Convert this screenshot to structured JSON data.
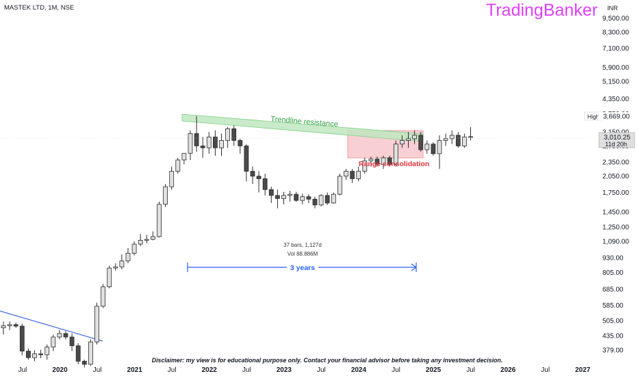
{
  "header": {
    "symbol_line": "MASTEK LTD, 1M, NSE",
    "brand": "TradingBanker",
    "currency": "INR"
  },
  "price_tags": {
    "high_label": "High",
    "high_value": "3,669.00",
    "last_value": "3,010.25",
    "countdown": "11d 20h"
  },
  "annotations": {
    "trendline": "Trendline resistance",
    "range": "Range consolidation",
    "measure_bars": "37 bars, 1,127d",
    "measure_vol": "Vol 88.886M",
    "span": "3 years"
  },
  "disclaimer": "Disclaimer: my view is for educational purpose only. Contact your financial advisor before taking any investment decision.",
  "colors": {
    "up_fill": "#e0e0e0",
    "down_fill": "#4a4a4a",
    "wick": "#2a2a2a",
    "brand": "#e040fb",
    "trendline_green": "#2e9e3e",
    "range_red": "#e0323c",
    "range_fill": "#f6c3c7",
    "measure_blue": "#2962ff",
    "blue_line": "#4169e1"
  },
  "chart_data": {
    "type": "candlestick",
    "timeframe": "1M",
    "y_scale": "log",
    "y_ticks": [
      "9,500.00",
      "8,300.00",
      "7,100.00",
      "5,900.00",
      "5,150.00",
      "4,350.00",
      "3,750.00",
      "3,150.00",
      "2,750.00",
      "2,350.00",
      "2,050.00",
      "1,750.00",
      "1,450.00",
      "1,250.00",
      "1,090.00",
      "930.00",
      "805.00",
      "685.00",
      "585.00",
      "505.00",
      "435.00",
      "379.00"
    ],
    "x_ticks": [
      "Jul",
      "2020",
      "Jul",
      "2021",
      "Jul",
      "2022",
      "Jul",
      "2023",
      "Jul",
      "2024",
      "Jul",
      "2025",
      "Jul",
      "2026",
      "Jul",
      "2027"
    ],
    "candles": [
      {
        "o": 470,
        "h": 500,
        "l": 440,
        "c": 480
      },
      {
        "o": 480,
        "h": 500,
        "l": 460,
        "c": 485
      },
      {
        "o": 485,
        "h": 495,
        "l": 470,
        "c": 478
      },
      {
        "o": 478,
        "h": 490,
        "l": 360,
        "c": 375
      },
      {
        "o": 375,
        "h": 385,
        "l": 345,
        "c": 352
      },
      {
        "o": 352,
        "h": 378,
        "l": 340,
        "c": 365
      },
      {
        "o": 365,
        "h": 380,
        "l": 350,
        "c": 362
      },
      {
        "o": 362,
        "h": 400,
        "l": 345,
        "c": 390
      },
      {
        "o": 390,
        "h": 440,
        "l": 375,
        "c": 430
      },
      {
        "o": 430,
        "h": 460,
        "l": 420,
        "c": 445
      },
      {
        "o": 445,
        "h": 455,
        "l": 420,
        "c": 430
      },
      {
        "o": 430,
        "h": 445,
        "l": 375,
        "c": 395
      },
      {
        "o": 395,
        "h": 405,
        "l": 330,
        "c": 340
      },
      {
        "o": 340,
        "h": 345,
        "l": 320,
        "c": 330
      },
      {
        "o": 330,
        "h": 420,
        "l": 325,
        "c": 410
      },
      {
        "o": 410,
        "h": 600,
        "l": 400,
        "c": 580
      },
      {
        "o": 580,
        "h": 720,
        "l": 570,
        "c": 700
      },
      {
        "o": 700,
        "h": 860,
        "l": 690,
        "c": 840
      },
      {
        "o": 840,
        "h": 880,
        "l": 820,
        "c": 850
      },
      {
        "o": 850,
        "h": 960,
        "l": 830,
        "c": 900
      },
      {
        "o": 900,
        "h": 1020,
        "l": 880,
        "c": 970
      },
      {
        "o": 970,
        "h": 1090,
        "l": 950,
        "c": 1060
      },
      {
        "o": 1060,
        "h": 1170,
        "l": 1040,
        "c": 1100
      },
      {
        "o": 1100,
        "h": 1160,
        "l": 1070,
        "c": 1110
      },
      {
        "o": 1110,
        "h": 1200,
        "l": 1100,
        "c": 1140
      },
      {
        "o": 1140,
        "h": 1600,
        "l": 1130,
        "c": 1560
      },
      {
        "o": 1560,
        "h": 1900,
        "l": 1520,
        "c": 1850
      },
      {
        "o": 1850,
        "h": 2250,
        "l": 1800,
        "c": 2150
      },
      {
        "o": 2150,
        "h": 2450,
        "l": 2100,
        "c": 2400
      },
      {
        "o": 2400,
        "h": 2560,
        "l": 2300,
        "c": 2560
      },
      {
        "o": 2560,
        "h": 3200,
        "l": 2400,
        "c": 3100
      },
      {
        "o": 3100,
        "h": 3669,
        "l": 2600,
        "c": 2750
      },
      {
        "o": 2750,
        "h": 3000,
        "l": 2450,
        "c": 2700
      },
      {
        "o": 2700,
        "h": 3150,
        "l": 2550,
        "c": 3000
      },
      {
        "o": 3000,
        "h": 3200,
        "l": 2500,
        "c": 2700
      },
      {
        "o": 2700,
        "h": 3100,
        "l": 2500,
        "c": 2900
      },
      {
        "o": 2900,
        "h": 3300,
        "l": 2700,
        "c": 3250
      },
      {
        "o": 3250,
        "h": 3350,
        "l": 2750,
        "c": 2900
      },
      {
        "o": 2900,
        "h": 2950,
        "l": 2550,
        "c": 2750
      },
      {
        "o": 2750,
        "h": 2800,
        "l": 1950,
        "c": 2150
      },
      {
        "o": 2150,
        "h": 2250,
        "l": 1900,
        "c": 2050
      },
      {
        "o": 2050,
        "h": 2150,
        "l": 1750,
        "c": 2000
      },
      {
        "o": 2000,
        "h": 2100,
        "l": 1700,
        "c": 1800
      },
      {
        "o": 1800,
        "h": 1850,
        "l": 1580,
        "c": 1700
      },
      {
        "o": 1700,
        "h": 1800,
        "l": 1500,
        "c": 1650
      },
      {
        "o": 1650,
        "h": 1760,
        "l": 1560,
        "c": 1700
      },
      {
        "o": 1700,
        "h": 1780,
        "l": 1600,
        "c": 1720
      },
      {
        "o": 1720,
        "h": 1760,
        "l": 1600,
        "c": 1620
      },
      {
        "o": 1620,
        "h": 1730,
        "l": 1560,
        "c": 1680
      },
      {
        "o": 1680,
        "h": 1720,
        "l": 1580,
        "c": 1640
      },
      {
        "o": 1640,
        "h": 1680,
        "l": 1500,
        "c": 1550
      },
      {
        "o": 1550,
        "h": 1720,
        "l": 1530,
        "c": 1700
      },
      {
        "o": 1700,
        "h": 1750,
        "l": 1550,
        "c": 1580
      },
      {
        "o": 1580,
        "h": 1750,
        "l": 1570,
        "c": 1720
      },
      {
        "o": 1720,
        "h": 2100,
        "l": 1700,
        "c": 2050
      },
      {
        "o": 2050,
        "h": 2200,
        "l": 1980,
        "c": 2150
      },
      {
        "o": 2150,
        "h": 2200,
        "l": 1920,
        "c": 2000
      },
      {
        "o": 2000,
        "h": 2250,
        "l": 1950,
        "c": 2150
      },
      {
        "o": 2150,
        "h": 2450,
        "l": 2100,
        "c": 2380
      },
      {
        "o": 2380,
        "h": 2480,
        "l": 2250,
        "c": 2420
      },
      {
        "o": 2420,
        "h": 2480,
        "l": 2250,
        "c": 2300
      },
      {
        "o": 2300,
        "h": 2500,
        "l": 2200,
        "c": 2450
      },
      {
        "o": 2450,
        "h": 2500,
        "l": 2250,
        "c": 2300
      },
      {
        "o": 2300,
        "h": 2900,
        "l": 2250,
        "c": 2800
      },
      {
        "o": 2800,
        "h": 3050,
        "l": 2700,
        "c": 2900
      },
      {
        "o": 2900,
        "h": 3150,
        "l": 2700,
        "c": 2950
      },
      {
        "o": 2950,
        "h": 3200,
        "l": 2800,
        "c": 3050
      },
      {
        "o": 3050,
        "h": 3150,
        "l": 2600,
        "c": 2650
      },
      {
        "o": 2650,
        "h": 2900,
        "l": 2550,
        "c": 2800
      },
      {
        "o": 2800,
        "h": 2850,
        "l": 2500,
        "c": 2550
      },
      {
        "o": 2550,
        "h": 3050,
        "l": 2200,
        "c": 2900
      },
      {
        "o": 2900,
        "h": 3100,
        "l": 2750,
        "c": 2950
      },
      {
        "o": 2950,
        "h": 3200,
        "l": 2800,
        "c": 3050
      },
      {
        "o": 3050,
        "h": 3150,
        "l": 2700,
        "c": 2750
      },
      {
        "o": 2750,
        "h": 3100,
        "l": 2700,
        "c": 3000
      },
      {
        "o": 3000,
        "h": 3300,
        "l": 2900,
        "c": 3010.25
      }
    ]
  }
}
